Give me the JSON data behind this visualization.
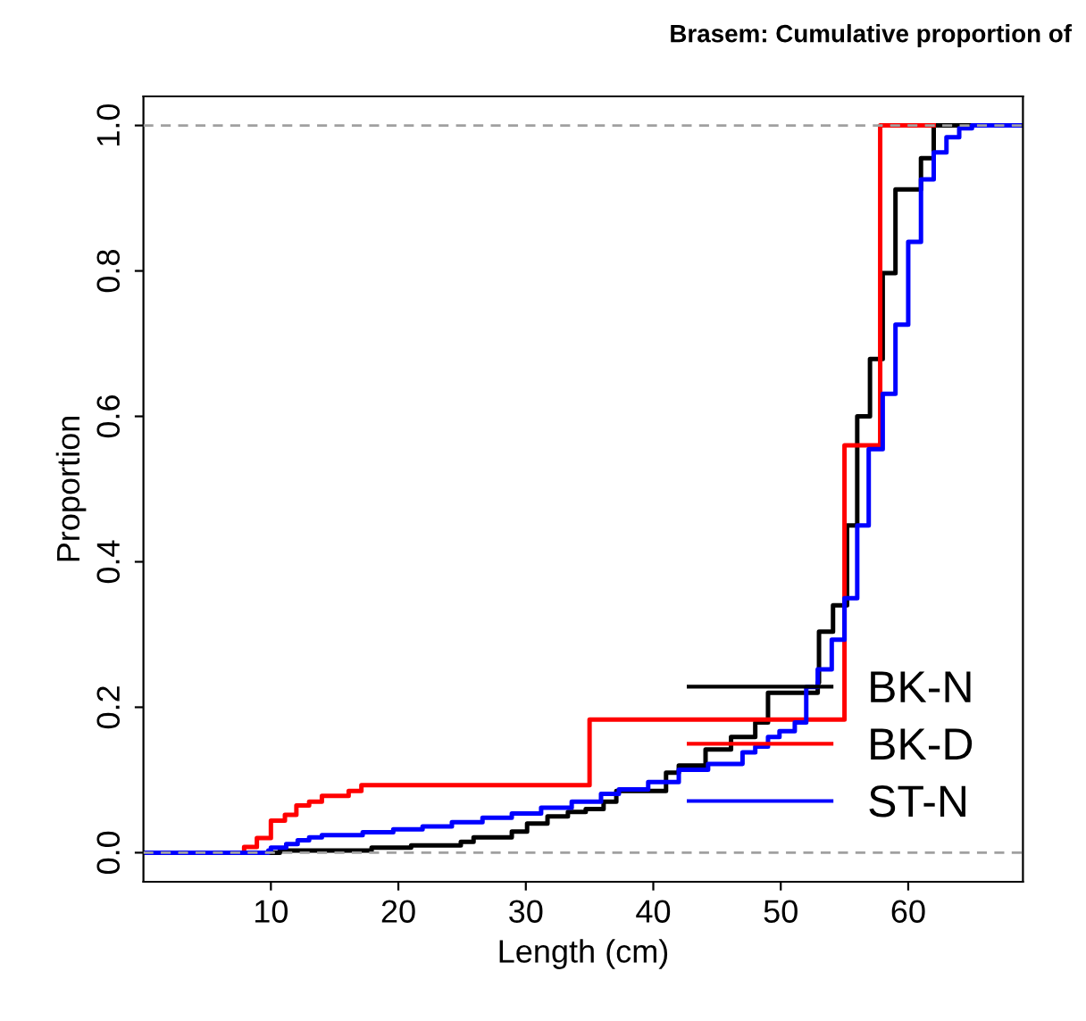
{
  "chart_data": {
    "type": "step",
    "title": "Brasem: Cumulative proportion of",
    "xlabel": "Length (cm)",
    "ylabel": "Proportion",
    "xlim": [
      0,
      69
    ],
    "ylim": [
      -0.04,
      1.04
    ],
    "xticks": [
      10,
      20,
      30,
      40,
      50,
      60
    ],
    "yticks": [
      {
        "value": 0,
        "label": "0.0"
      },
      {
        "value": 0.2,
        "label": "0.2"
      },
      {
        "value": 0.4,
        "label": "0.4"
      },
      {
        "value": 0.6,
        "label": "0.6"
      },
      {
        "value": 0.8,
        "label": "0.8"
      },
      {
        "value": 1,
        "label": "1.0"
      }
    ],
    "grid": false,
    "legend": "bottom right",
    "line_style": "solid",
    "marker": "none",
    "ref_lines": [
      {
        "axis": "y",
        "value": 0,
        "color": "#a0a0a0",
        "line_style": "dashed"
      },
      {
        "axis": "y",
        "value": 1,
        "color": "#a0a0a0",
        "line_style": "dashed"
      }
    ],
    "series": [
      {
        "name": "BK-N",
        "color": "#000000",
        "x": [
          0,
          10.7,
          17.9,
          21,
          24.9,
          25.9,
          28.9,
          30.1,
          31.7,
          33.3,
          34.7,
          36.1,
          37.1,
          41,
          42,
          44.1,
          46.1,
          48,
          49,
          52.9,
          53,
          54.1,
          55.2,
          56,
          57,
          58,
          59,
          61,
          62,
          69
        ],
        "values": [
          0,
          0.003,
          0.007,
          0.01,
          0.015,
          0.021,
          0.029,
          0.04,
          0.05,
          0.056,
          0.06,
          0.07,
          0.085,
          0.11,
          0.12,
          0.142,
          0.159,
          0.179,
          0.22,
          0.234,
          0.304,
          0.34,
          0.45,
          0.6,
          0.679,
          0.797,
          0.912,
          0.955,
          1,
          1
        ]
      },
      {
        "name": "BK-D",
        "color": "#ff0000",
        "x": [
          0,
          7.9,
          8.9,
          10,
          11.1,
          12,
          13,
          14,
          16.1,
          17.1,
          35,
          55,
          57.8,
          62
        ],
        "values": [
          0,
          0.008,
          0.02,
          0.044,
          0.052,
          0.065,
          0.07,
          0.078,
          0.085,
          0.093,
          0.183,
          0.56,
          1,
          1
        ]
      },
      {
        "name": "ST-N",
        "color": "#0000ff",
        "x": [
          0,
          9.8,
          10,
          11.2,
          12.1,
          13,
          14,
          17.2,
          19.6,
          21.9,
          24.2,
          26.6,
          28.9,
          31.2,
          33.6,
          35.9,
          37.3,
          39.6,
          42,
          44.3,
          47,
          48,
          49,
          49.9,
          51.1,
          52,
          52.9,
          54,
          55,
          56,
          56.9,
          58,
          59,
          60,
          61,
          62,
          63,
          64,
          65,
          69
        ],
        "values": [
          0,
          0.003,
          0.007,
          0.012,
          0.017,
          0.021,
          0.024,
          0.028,
          0.032,
          0.036,
          0.042,
          0.048,
          0.054,
          0.062,
          0.07,
          0.081,
          0.087,
          0.097,
          0.114,
          0.122,
          0.138,
          0.146,
          0.159,
          0.167,
          0.179,
          0.228,
          0.252,
          0.293,
          0.35,
          0.45,
          0.555,
          0.631,
          0.726,
          0.84,
          0.926,
          0.963,
          0.984,
          0.996,
          1,
          1
        ]
      }
    ]
  }
}
